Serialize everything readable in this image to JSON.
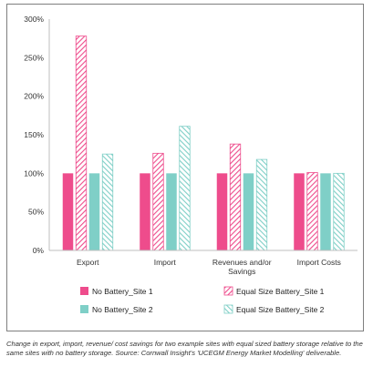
{
  "chart_data": {
    "type": "bar",
    "categories": [
      "Export",
      "Import",
      "Revenues and/or\nSavings",
      "Import Costs"
    ],
    "series": [
      {
        "name": "No Battery_Site 1",
        "values": [
          100,
          100,
          100,
          100
        ],
        "color": "#ee4c8c",
        "pattern": "solid"
      },
      {
        "name": "Equal Size Battery_Site 1",
        "values": [
          278,
          126,
          138,
          101
        ],
        "color": "#ee4c8c",
        "pattern": "hatch"
      },
      {
        "name": "No Battery_Site 2",
        "values": [
          100,
          100,
          100,
          100
        ],
        "color": "#7fcfc7",
        "pattern": "solid"
      },
      {
        "name": "Equal Size Battery_Site 2",
        "values": [
          125,
          161,
          118,
          100
        ],
        "color": "#7fcfc7",
        "pattern": "hatch"
      }
    ],
    "y_ticks": [
      "0%",
      "50%",
      "100%",
      "150%",
      "200%",
      "250%",
      "300%"
    ],
    "ylim": [
      0,
      300
    ],
    "y_unit": "%",
    "grid": false,
    "legend_position": "bottom"
  },
  "caption": "Change in export, import, revenue/ cost savings for two example sites with equal sized battery storage relative to the same sites with no battery storage. Source: Cornwall Insight's 'UCEGM Energy Market Modelling' deliverable."
}
